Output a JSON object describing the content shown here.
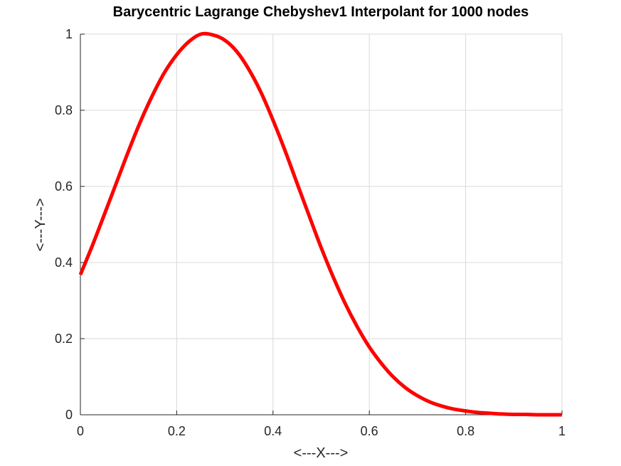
{
  "chart_data": {
    "type": "line",
    "title": "Barycentric Lagrange Chebyshev1 Interpolant for 1000 nodes",
    "xlabel": "<---X--->",
    "ylabel": "<---Y--->",
    "xlim": [
      0,
      1
    ],
    "ylim": [
      0,
      1
    ],
    "grid": true,
    "xticks": [
      0,
      0.2,
      0.4,
      0.6,
      0.8,
      1
    ],
    "xtick_labels": [
      "0",
      "0.2",
      "0.4",
      "0.6",
      "0.8",
      "1"
    ],
    "yticks": [
      0,
      0.2,
      0.4,
      0.6,
      0.8,
      1
    ],
    "ytick_labels": [
      "0",
      "0.2",
      "0.4",
      "0.6",
      "0.8",
      "1"
    ],
    "series": [
      {
        "color": "#ff0000",
        "x": [
          0,
          0.025,
          0.05,
          0.075,
          0.1,
          0.125,
          0.15,
          0.175,
          0.2,
          0.225,
          0.25,
          0.275,
          0.3,
          0.325,
          0.35,
          0.375,
          0.4,
          0.425,
          0.45,
          0.475,
          0.5,
          0.525,
          0.55,
          0.575,
          0.6,
          0.625,
          0.65,
          0.675,
          0.7,
          0.725,
          0.75,
          0.775,
          0.8,
          0.825,
          0.85,
          0.875,
          0.9,
          0.925,
          0.95,
          0.975,
          1
        ],
        "y": [
          0.368,
          0.445,
          0.527,
          0.61,
          0.693,
          0.771,
          0.84,
          0.9,
          0.946,
          0.98,
          1.0,
          0.998,
          0.984,
          0.954,
          0.907,
          0.847,
          0.774,
          0.694,
          0.608,
          0.523,
          0.439,
          0.362,
          0.292,
          0.231,
          0.178,
          0.135,
          0.099,
          0.071,
          0.05,
          0.034,
          0.023,
          0.015,
          0.01,
          0.006,
          0.004,
          0.002,
          0.001,
          0.001,
          0.0,
          0.0,
          0.0
        ]
      }
    ]
  }
}
